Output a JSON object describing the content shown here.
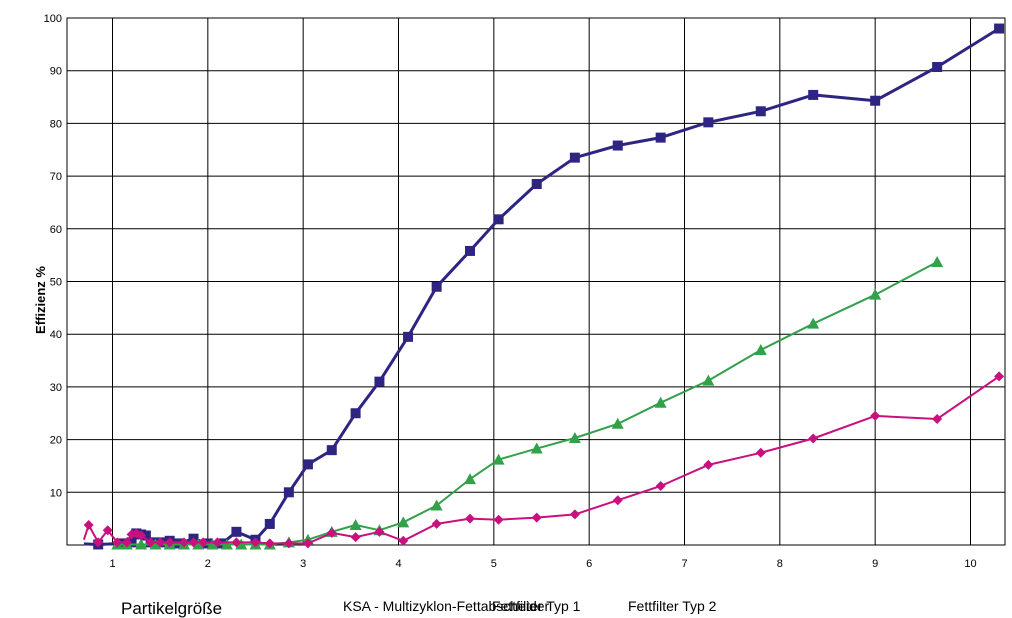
{
  "chart_data": {
    "type": "line",
    "ylabel": "Effizienz %",
    "xlabel": "Partikelgröße",
    "xlim": [
      0.7,
      10.3
    ],
    "ylim": [
      0,
      100
    ],
    "x_ticks": [
      "1",
      "2",
      "3",
      "4",
      "5",
      "6",
      "7",
      "8",
      "9",
      "10"
    ],
    "y_ticks": [
      "10",
      "20",
      "30",
      "40",
      "50",
      "60",
      "70",
      "80",
      "90",
      "100"
    ],
    "grid": true,
    "legend_position": "bottom",
    "series": [
      {
        "name": "KSA - Multizyklon-Fettabscheider",
        "color": "#2e2583",
        "marker": "square",
        "line_width": 3,
        "x": [
          0.7,
          0.85,
          1.1,
          1.2,
          1.25,
          1.3,
          1.35,
          1.4,
          1.5,
          1.6,
          1.7,
          1.85,
          2.0,
          2.15,
          2.3,
          2.5,
          2.65,
          2.85,
          3.05,
          3.3,
          3.55,
          3.8,
          4.1,
          4.4,
          4.75,
          5.05,
          5.45,
          5.85,
          6.3,
          6.75,
          7.25,
          7.8,
          8.35,
          9.0,
          9.65,
          10.3
        ],
        "y": [
          0.2,
          0.1,
          0.3,
          0.5,
          2.2,
          2.0,
          1.8,
          0.5,
          0.5,
          0.8,
          0.3,
          1.2,
          0.3,
          0.3,
          2.5,
          1.0,
          4.0,
          10.0,
          15.3,
          18.0,
          25.0,
          31.0,
          39.5,
          49.0,
          55.8,
          61.8,
          68.5,
          73.5,
          75.8,
          77.3,
          80.2,
          82.3,
          85.4,
          84.3,
          90.7,
          98.0
        ]
      },
      {
        "name": "Fettfilter Typ 1",
        "color": "#33a04a",
        "marker": "triangle",
        "line_width": 2,
        "x": [
          1.05,
          1.15,
          1.3,
          1.45,
          1.6,
          1.75,
          1.9,
          2.05,
          2.2,
          2.35,
          2.5,
          2.65,
          2.85,
          3.05,
          3.3,
          3.55,
          3.8,
          4.05,
          4.4,
          4.75,
          5.05,
          5.45,
          5.85,
          6.3,
          6.75,
          7.25,
          7.8,
          8.35,
          9.0,
          9.65
        ],
        "y": [
          0.1,
          0.1,
          0.1,
          0.1,
          0.1,
          0.1,
          0.1,
          0.1,
          0.1,
          0.1,
          0.1,
          0.1,
          0.5,
          1.0,
          2.5,
          3.8,
          2.8,
          4.3,
          7.5,
          12.5,
          16.2,
          18.3,
          20.3,
          23.0,
          27.0,
          31.2,
          37.0,
          42.0,
          47.5,
          53.7
        ]
      },
      {
        "name": "Fettfilter Typ 2",
        "color": "#c8107f",
        "marker": "diamond",
        "line_width": 2,
        "x": [
          0.7,
          0.75,
          0.85,
          0.95,
          1.05,
          1.15,
          1.2,
          1.25,
          1.3,
          1.4,
          1.5,
          1.6,
          1.75,
          1.85,
          1.95,
          2.1,
          2.3,
          2.5,
          2.65,
          2.85,
          3.05,
          3.3,
          3.55,
          3.8,
          4.05,
          4.4,
          4.75,
          5.05,
          5.45,
          5.85,
          6.3,
          6.75,
          7.25,
          7.8,
          8.35,
          9.0,
          9.65,
          10.3
        ],
        "y": [
          1.0,
          3.8,
          0.5,
          2.8,
          0.5,
          0.5,
          2.0,
          2.2,
          1.8,
          0.5,
          0.5,
          0.5,
          0.5,
          0.5,
          0.5,
          0.5,
          0.5,
          0.5,
          0.3,
          0.3,
          0.3,
          2.3,
          1.5,
          2.5,
          0.8,
          4.0,
          5.0,
          4.8,
          5.2,
          5.8,
          8.5,
          11.2,
          15.2,
          17.5,
          20.2,
          24.5,
          23.9,
          32.0
        ]
      }
    ]
  }
}
